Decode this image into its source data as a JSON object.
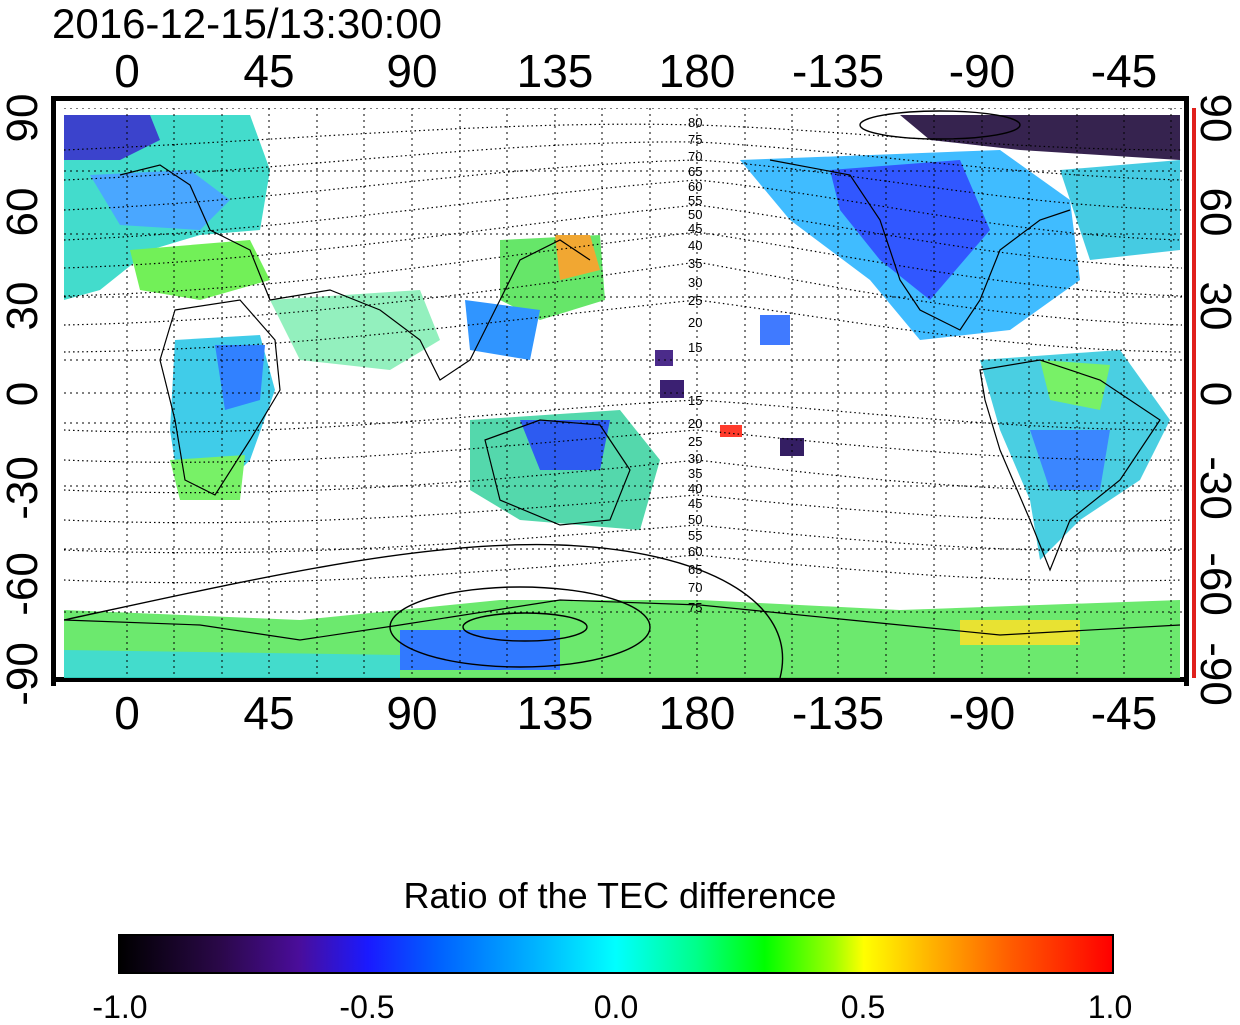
{
  "timestamp": "2016-12-15/13:30:00",
  "map": {
    "top_lon_ticks": [
      "0",
      "45",
      "90",
      "135",
      "180",
      "-135",
      "-90",
      "-45"
    ],
    "bottom_lon_ticks": [
      "0",
      "45",
      "90",
      "135",
      "180",
      "-135",
      "-90",
      "-45"
    ],
    "left_lat_ticks": [
      "90",
      "60",
      "30",
      "0",
      "-30",
      "-60",
      "-90"
    ],
    "right_lat_ticks": [
      "90",
      "60",
      "30",
      "0",
      "-30",
      "-60",
      "-90"
    ],
    "north_contour_labels": [
      "80",
      "75",
      "70",
      "65",
      "60",
      "55",
      "50",
      "45",
      "40",
      "35",
      "30",
      "25",
      "20",
      "15"
    ],
    "south_contour_labels": [
      "15",
      "20",
      "25",
      "30",
      "35",
      "40",
      "45",
      "50",
      "55",
      "60",
      "65",
      "70",
      "75"
    ],
    "right_axis_color": "#e0201c"
  },
  "colorbar": {
    "title": "Ratio of the TEC difference",
    "ticks": [
      "-1.0",
      "-0.5",
      "0.0",
      "0.5",
      "1.0"
    ],
    "range": [
      -1.0,
      1.0
    ]
  }
}
